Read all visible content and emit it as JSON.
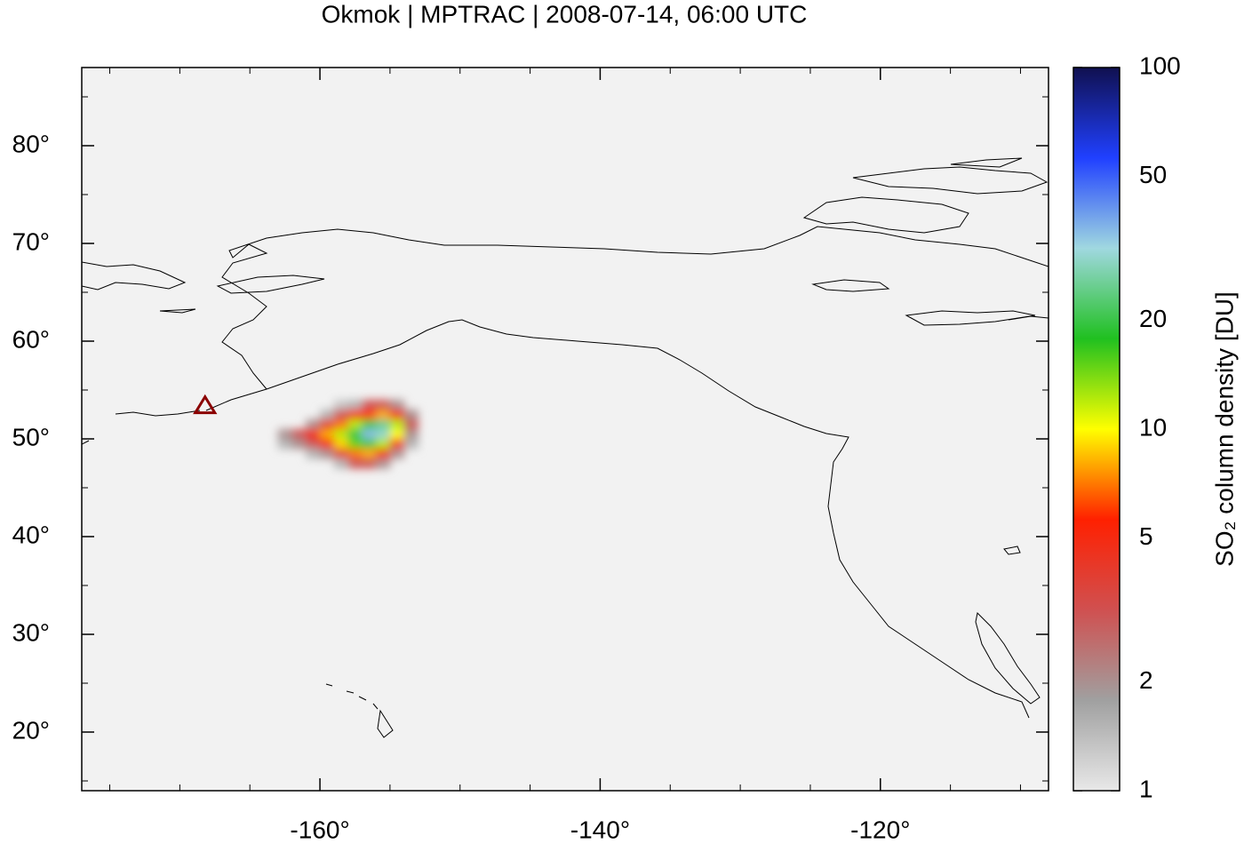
{
  "chart_data": {
    "type": "map",
    "title": "Okmok | MPTRAC | 2008-07-14, 06:00 UTC",
    "xlim": [
      -177,
      -108
    ],
    "ylim": [
      14,
      88
    ],
    "xticks": [
      {
        "value": -160,
        "label": "-160°"
      },
      {
        "value": -140,
        "label": "-140°"
      },
      {
        "value": -120,
        "label": "-120°"
      }
    ],
    "yticks": [
      {
        "value": 20,
        "label": "20°"
      },
      {
        "value": 30,
        "label": "30°"
      },
      {
        "value": 40,
        "label": "40°"
      },
      {
        "value": 50,
        "label": "50°"
      },
      {
        "value": 60,
        "label": "60°"
      },
      {
        "value": 70,
        "label": "70°"
      },
      {
        "value": 80,
        "label": "80°"
      }
    ],
    "xminorticks": [
      -175,
      -170,
      -165,
      -155,
      -150,
      -145,
      -135,
      -130,
      -125,
      -115,
      -110
    ],
    "yminorticks": [
      15,
      25,
      35,
      45,
      55,
      65,
      75,
      85
    ],
    "background": "#f2f2f2",
    "volcano": {
      "lon": -168.2,
      "lat": 53.4,
      "color": "#8b0000"
    },
    "plume": {
      "lon": [
        -162.5,
        -161.5,
        -160.5,
        -159.5,
        -158.5,
        -157.5,
        -156.5,
        -155.5,
        -154.5,
        -153.5
      ],
      "lat": [
        53.5,
        52.5,
        51.5,
        50.5,
        49.5,
        48.5,
        47.5
      ],
      "values": [
        [
          null,
          null,
          null,
          null,
          1.3,
          1.5,
          3,
          3,
          2,
          null
        ],
        [
          null,
          null,
          null,
          1.5,
          3,
          5,
          6,
          8,
          5,
          2
        ],
        [
          null,
          null,
          2,
          4,
          7,
          12,
          20,
          25,
          12,
          3
        ],
        [
          2,
          3,
          5,
          8,
          12,
          20,
          35,
          30,
          10,
          2
        ],
        [
          1.5,
          2,
          3,
          5,
          9,
          15,
          20,
          12,
          5,
          1.5
        ],
        [
          null,
          null,
          1.5,
          2,
          4,
          7,
          8,
          5,
          2,
          null
        ],
        [
          null,
          null,
          null,
          null,
          1.5,
          3,
          3,
          2,
          null,
          null
        ]
      ]
    },
    "colorbar": {
      "label": "SO₂ column density [DU]",
      "zlim": [
        1,
        100
      ],
      "zticks": [
        1,
        2,
        5,
        10,
        20,
        50,
        100
      ],
      "log": true,
      "colormap": [
        "#e8e8e8",
        "#a0a0a0",
        "#d05050",
        "#ff2000",
        "#ffff00",
        "#20c020",
        "#a0d8e0",
        "#2040ff",
        "#101050"
      ]
    }
  }
}
